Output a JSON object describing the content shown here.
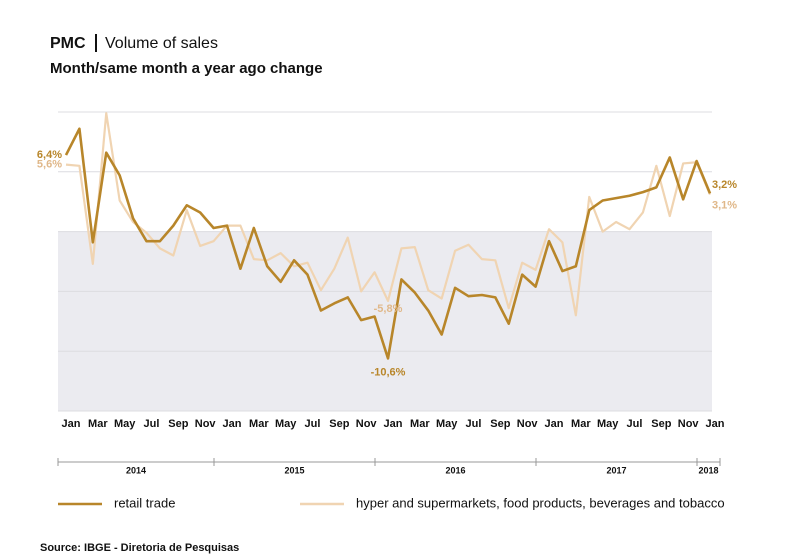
{
  "chart_data": {
    "type": "line",
    "title": "PMC",
    "title_suffix": "Volume of sales",
    "subtitle": "Month/same month a year ago change",
    "categories": [
      "Jan",
      null,
      "Mar",
      null,
      "May",
      null,
      "Jul",
      null,
      "Sep",
      null,
      "Nov",
      null,
      "Jan",
      null,
      "Mar",
      null,
      "May",
      null,
      "Jul",
      null,
      "Sep",
      null,
      "Nov",
      null,
      "Jan",
      null,
      "Mar",
      null,
      "May",
      null,
      "Jul",
      null,
      "Sep",
      null,
      "Nov",
      null,
      "Jan",
      null,
      "Mar",
      null,
      "May",
      null,
      "Jul",
      null,
      "Sep",
      null,
      "Nov",
      null,
      "Jan"
    ],
    "years": [
      "2014",
      "2015",
      "2016",
      "2017",
      "2018"
    ],
    "series": [
      {
        "name": "retail trade",
        "color": "#b8862a",
        "values": [
          6.4,
          8.6,
          -0.9,
          6.6,
          4.7,
          1.1,
          -0.8,
          -0.8,
          0.5,
          2.2,
          1.6,
          0.3,
          0.5,
          -3.1,
          0.3,
          -2.9,
          -4.2,
          -2.4,
          -3.6,
          -6.6,
          -6.0,
          -5.5,
          -7.4,
          -7.1,
          -10.6,
          -4.0,
          -5.1,
          -6.6,
          -8.6,
          -4.7,
          -5.4,
          -5.3,
          -5.5,
          -7.7,
          -3.6,
          -4.6,
          -0.8,
          -3.3,
          -2.9,
          1.8,
          2.6,
          2.8,
          3.0,
          3.3,
          3.7,
          6.2,
          2.7,
          5.9,
          3.2
        ],
        "value_labels": [
          "6,4%",
          null,
          null,
          null,
          null,
          null,
          null,
          null,
          null,
          null,
          null,
          null,
          null,
          null,
          null,
          null,
          null,
          null,
          null,
          null,
          null,
          null,
          null,
          null,
          "-10,6%",
          null,
          null,
          null,
          null,
          null,
          null,
          null,
          null,
          null,
          null,
          null,
          null,
          null,
          null,
          null,
          null,
          null,
          null,
          null,
          null,
          null,
          null,
          null,
          "3,2%"
        ]
      },
      {
        "name": "hyper and supermarkets, food products, beverages and tobacco",
        "color": "#f0d4b2",
        "values": [
          5.6,
          5.5,
          -2.7,
          9.9,
          2.6,
          0.8,
          -0.1,
          -1.4,
          -2.0,
          1.8,
          -1.2,
          -0.8,
          0.5,
          0.5,
          -2.3,
          -2.4,
          -1.8,
          -2.9,
          -2.6,
          -4.9,
          -3.1,
          -0.5,
          -5.0,
          -3.4,
          -5.8,
          -1.4,
          -1.3,
          -4.9,
          -5.6,
          -1.6,
          -1.1,
          -2.3,
          -2.4,
          -6.4,
          -2.6,
          -3.2,
          0.2,
          -0.9,
          -7.0,
          2.9,
          0.0,
          0.8,
          0.2,
          1.6,
          5.5,
          1.3,
          5.7,
          5.8,
          3.1
        ],
        "value_labels": [
          "5,6%",
          null,
          null,
          null,
          null,
          null,
          null,
          null,
          null,
          null,
          null,
          null,
          null,
          null,
          null,
          null,
          null,
          null,
          null,
          null,
          null,
          null,
          null,
          null,
          "-5,8%",
          null,
          null,
          null,
          null,
          null,
          null,
          null,
          null,
          null,
          null,
          null,
          null,
          null,
          null,
          null,
          null,
          null,
          null,
          null,
          null,
          null,
          null,
          null,
          "3,1%"
        ]
      }
    ],
    "ylim": [
      -15,
      10
    ],
    "yticks": [
      -15,
      -10,
      -5,
      0,
      5,
      10
    ],
    "grid": true,
    "source": "Source: IBGE - Diretoria de Pesquisas"
  }
}
